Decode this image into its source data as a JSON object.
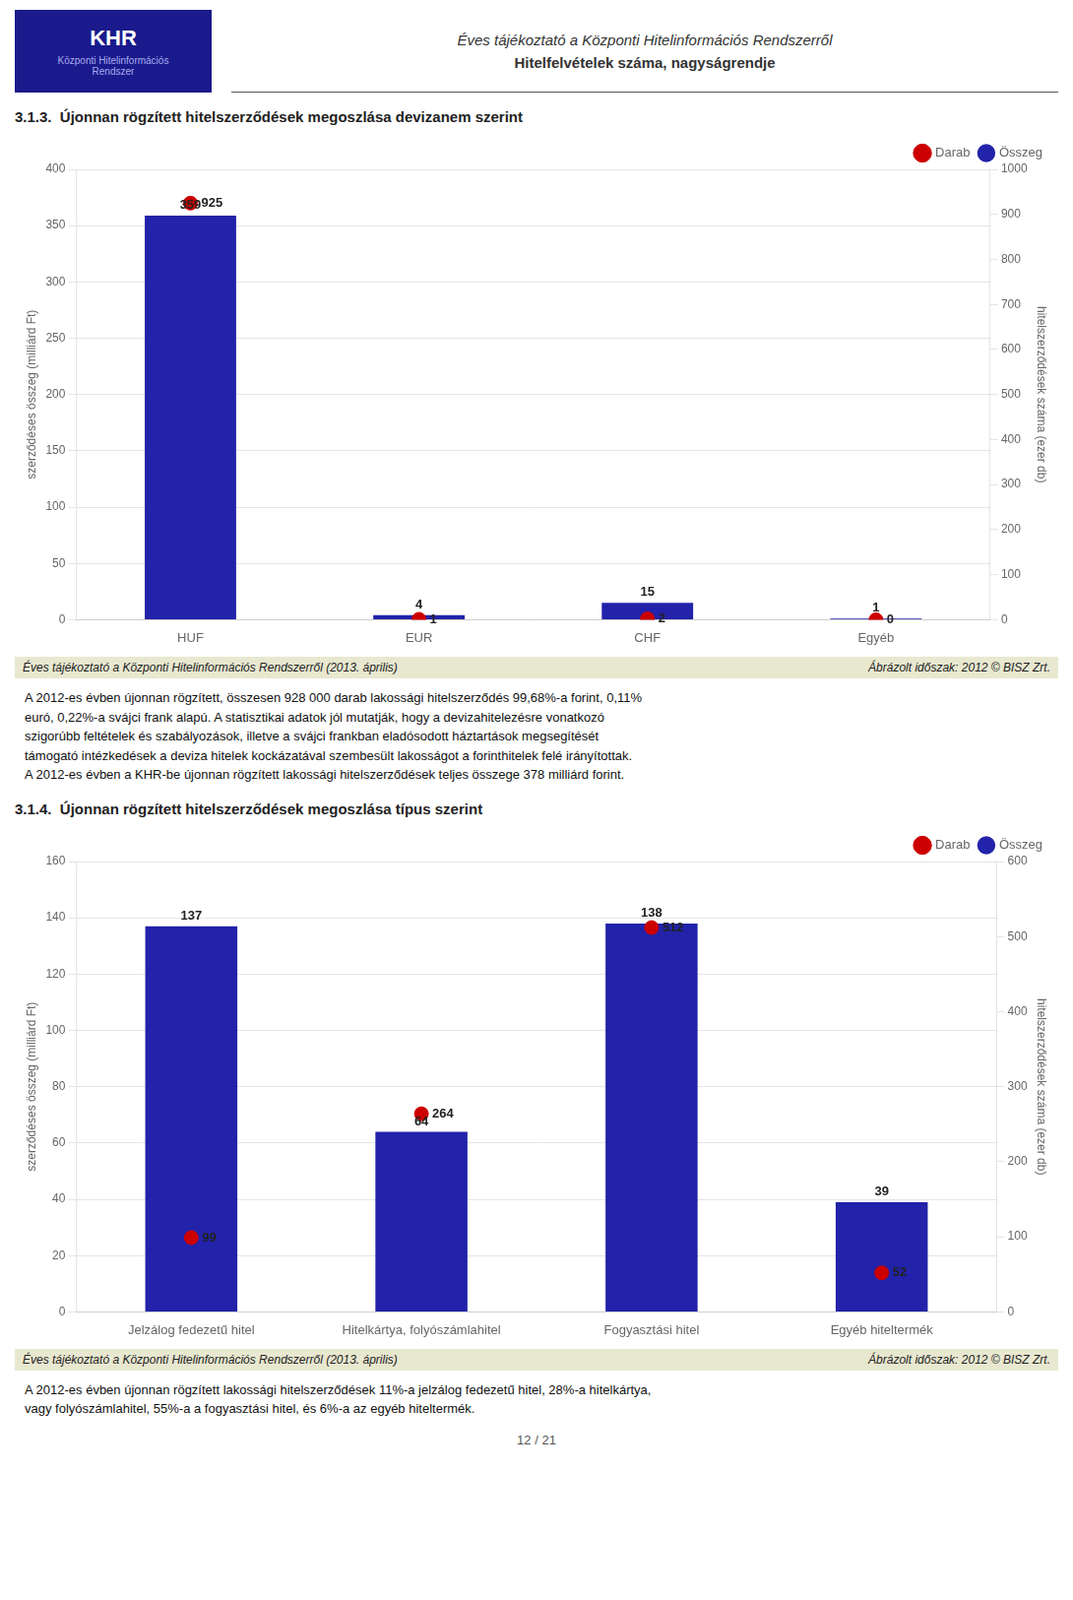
{
  "annotations": [
    "Éves tájékoztató a Központi Hitelinformációs Rendszerről",
    "Hitelfelvételek száma, nagyságrendje",
    "KHR",
    "Központi Hitelinformációs\nRendszer",
    "12 / 21"
  ],
  "chart_data": [
    {
      "type": "bar",
      "title": "3.1.3.  Újonnan rögzített hitelszerződések megoszlása devizanem szerint",
      "categories": [
        "HUF",
        "EUR",
        "CHF",
        "Egyéb"
      ],
      "series": [
        {
          "name": "Összeg",
          "type": "bar",
          "color": "#2222aa",
          "values": [
            359,
            4,
            15,
            1
          ]
        },
        {
          "name": "Darab",
          "type": "line",
          "line_style": "none",
          "marker": "circle",
          "color": "#cc0000",
          "axis": "y2",
          "values": [
            925,
            1,
            2,
            0
          ]
        }
      ],
      "ylabel": "szerződéses összeg (milliárd Ft)",
      "y2label": "hitelszerződések száma (ezer db)",
      "ylim": [
        0,
        400
      ],
      "yticks": [
        0,
        50,
        100,
        150,
        200,
        250,
        300,
        350,
        400
      ],
      "y2lim": [
        0,
        1000
      ],
      "y2ticks": [
        0,
        100,
        200,
        300,
        400,
        500,
        600,
        700,
        800,
        900,
        1000
      ],
      "grid": true,
      "legend": "upper right",
      "data_labels": true,
      "annotations": [
        "Éves tájékoztató a Központi Hitelinformációs Rendszerről (2013. április)",
        "Ábrázolt időszak: 2012 © BISZ Zrt.",
        "A 2012-es évben újonnan rögzített, összesen 928 000 darab lakossági hitelszerződés 99,68%-a forint, 0,11%\neuró, 0,22%-a svájci frank alapú. A statisztikai adatok jól mutatják, hogy a devizahitelezésre vonatkozó\nszigorúbb feltételek és szabályozások, illetve a svájci frankban eladósodott háztartások megsegítését\ntámogató intézkedések a deviza hitelek kockázatával szembesült lakosságot a forinthitelek felé irányítottak.\nA 2012-es évben a KHR-be újonnan rögzített lakossági hitelszerződések teljes összege 378 milliárd forint."
      ]
    },
    {
      "type": "bar",
      "title": "3.1.4.  Újonnan rögzített hitelszerződések megoszlása típus szerint",
      "categories": [
        "Jelzálog fedezetű hitel",
        "Hitelkártya, folyószámlahitel",
        "Fogyasztási hitel",
        "Egyéb hiteltermék"
      ],
      "series": [
        {
          "name": "Összeg",
          "type": "bar",
          "color": "#2222aa",
          "values": [
            137,
            64,
            138,
            39
          ]
        },
        {
          "name": "Darab",
          "type": "line",
          "line_style": "none",
          "marker": "circle",
          "color": "#cc0000",
          "axis": "y2",
          "values": [
            99,
            264,
            512,
            52
          ]
        }
      ],
      "ylabel": "szerződéses összeg (milliárd Ft)",
      "y2label": "hitelszerződések száma (ezer db)",
      "ylim": [
        0,
        160
      ],
      "yticks": [
        0,
        20,
        40,
        60,
        80,
        100,
        120,
        140,
        160
      ],
      "y2lim": [
        0,
        600
      ],
      "y2ticks": [
        0,
        100,
        200,
        300,
        400,
        500,
        600
      ],
      "grid": true,
      "legend": "upper right",
      "data_labels": true,
      "annotations": [
        "Éves tájékoztató a Központi Hitelinformációs Rendszerről (2013. április)",
        "Ábrázolt időszak: 2012 © BISZ Zrt.",
        "A 2012-es évben újonnan rögzített lakossági hitelszerződések 11%-a jelzálog fedezetű hitel, 28%-a hitelkártya,\nvagy folyószámlahitel, 55%-a a fogyasztási hitel, és 6%-a az egyéb hiteltermék."
      ]
    }
  ]
}
